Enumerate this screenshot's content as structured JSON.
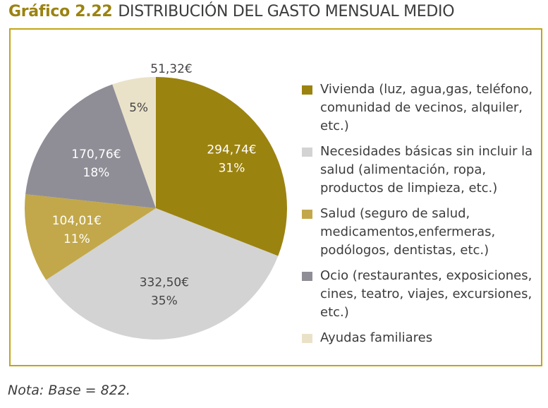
{
  "title_number": "Gráfico 2.22",
  "title_text": "DISTRIBUCIÓN DEL GASTO MENSUAL MEDIO",
  "note": "Nota: Base = 822.",
  "chart_data": {
    "type": "pie",
    "title": "DISTRIBUCIÓN DEL GASTO MENSUAL MEDIO",
    "slices": [
      {
        "name": "Vivienda (luz, agua,gas, teléfono, comunidad de vecinos, alquiler, etc.)",
        "amount": 294.74,
        "amount_label": "294,74€",
        "percent": 31,
        "percent_label": "31%",
        "color": "#9b8310"
      },
      {
        "name": "Necesidades básicas sin incluir la salud (alimentación, ropa, productos de limpieza, etc.)",
        "amount": 332.5,
        "amount_label": "332,50€",
        "percent": 35,
        "percent_label": "35%",
        "color": "#d3d3d3"
      },
      {
        "name": "Salud (seguro de salud, medicamentos,enfermeras, podólogos, dentistas, etc.)",
        "amount": 104.01,
        "amount_label": "104,01€",
        "percent": 11,
        "percent_label": "11%",
        "color": "#c2a84a"
      },
      {
        "name": "Ocio (restaurantes, exposiciones, cines, teatro, viajes, excursiones, etc.)",
        "amount": 170.76,
        "amount_label": "170,76€",
        "percent": 18,
        "percent_label": "18%",
        "color": "#8f8e97"
      },
      {
        "name": "Ayudas familiares",
        "amount": 51.32,
        "amount_label": "51,32€",
        "percent": 5,
        "percent_label": "5%",
        "color": "#eae2c8"
      }
    ]
  }
}
